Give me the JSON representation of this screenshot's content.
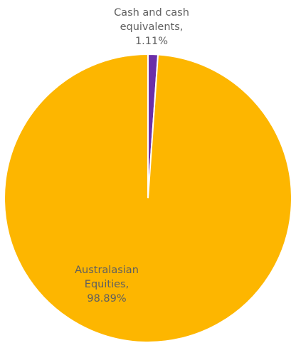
{
  "chart_data": {
    "type": "pie",
    "title": "",
    "slices": [
      {
        "label": "Cash and cash equivalents",
        "value": 1.11,
        "value_label": "1.11%",
        "label_lines": [
          "Cash and cash",
          "equivalents,",
          "1.11%"
        ],
        "color": "#6B2FA8"
      },
      {
        "label": "Australasian Equities",
        "value": 98.89,
        "value_label": "98.89%",
        "label_lines": [
          "Australasian",
          "Equities,",
          "98.89%"
        ],
        "color": "#FDB600"
      }
    ],
    "start_angle": "12 o'clock",
    "direction": "clockwise",
    "legend": "none",
    "label_color": "#5F5F5F"
  }
}
